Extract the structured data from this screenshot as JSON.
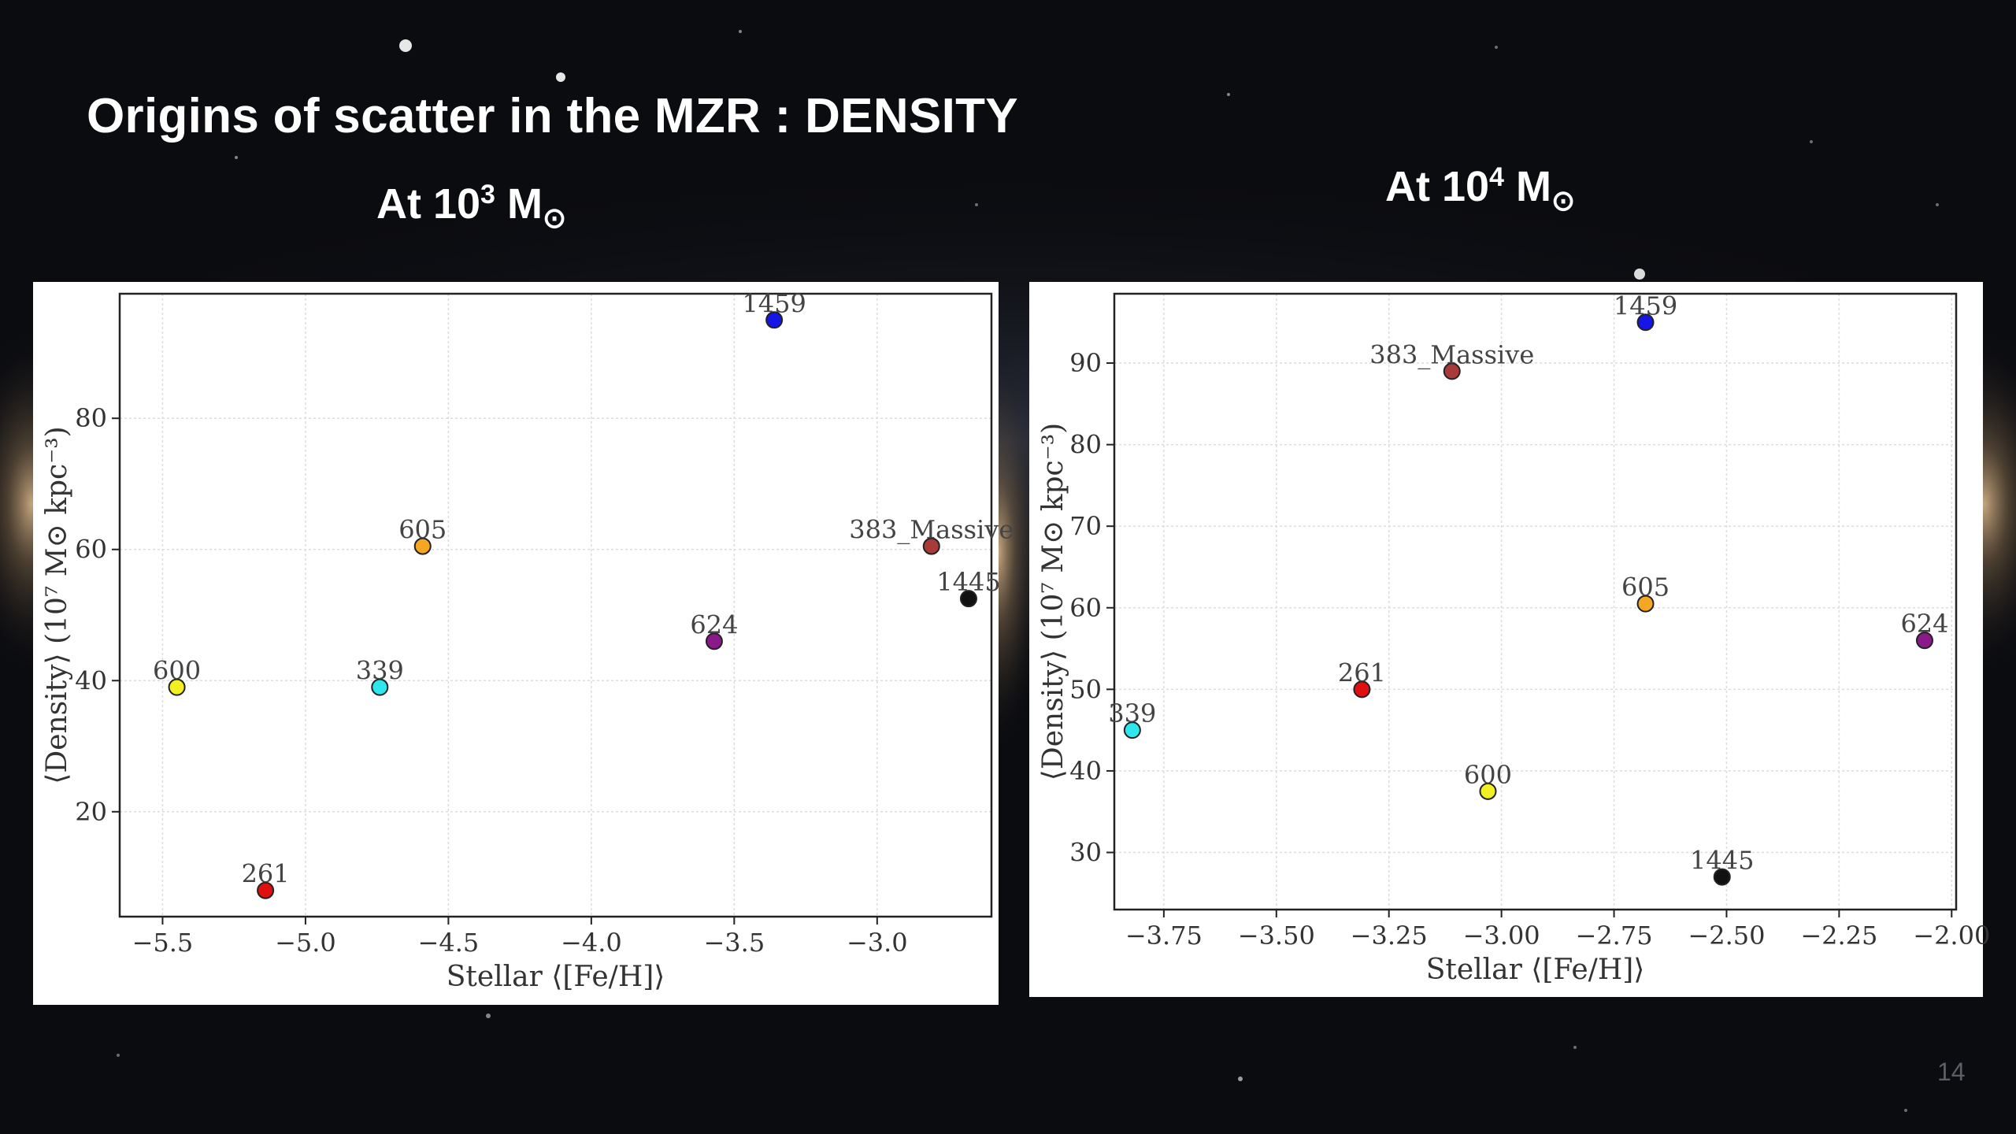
{
  "slide": {
    "title": "Origins of scatter in the MZR :  DENSITY",
    "page_number": "14"
  },
  "panels": [
    {
      "title_prefix": "At 10",
      "title_exp": "3",
      "title_unit": "M"
    },
    {
      "title_prefix": "At 10",
      "title_exp": "4",
      "title_unit": "M"
    }
  ],
  "chart_data": [
    {
      "type": "scatter",
      "xlabel": "Stellar ⟨[Fe/H]⟩",
      "ylabel": "⟨Density⟩ (10⁷ M⊙ kpc⁻³)",
      "xlim": [
        -5.65,
        -2.6
      ],
      "ylim": [
        4,
        99
      ],
      "xticks": [
        -5.5,
        -5.0,
        -4.5,
        -4.0,
        -3.5,
        -3.0
      ],
      "xtick_labels": [
        "−5.5",
        "−5.0",
        "−4.5",
        "−4.0",
        "−3.5",
        "−3.0"
      ],
      "yticks": [
        20,
        40,
        60,
        80
      ],
      "ytick_labels": [
        "20",
        "40",
        "60",
        "80"
      ],
      "grid": true,
      "points": [
        {
          "label": "1459",
          "x": -3.36,
          "y": 95,
          "color": "#1515e8"
        },
        {
          "label": "383_Massive",
          "x": -2.81,
          "y": 60.5,
          "color": "#a83a3a"
        },
        {
          "label": "605",
          "x": -4.59,
          "y": 60.5,
          "color": "#f5a623"
        },
        {
          "label": "1445",
          "x": -2.68,
          "y": 52.5,
          "color": "#111111"
        },
        {
          "label": "624",
          "x": -3.57,
          "y": 46,
          "color": "#8a1a8a"
        },
        {
          "label": "600",
          "x": -5.45,
          "y": 39,
          "color": "#f2ef22"
        },
        {
          "label": "339",
          "x": -4.74,
          "y": 39,
          "color": "#2ee6ec"
        },
        {
          "label": "261",
          "x": -5.14,
          "y": 8,
          "color": "#e01010"
        }
      ]
    },
    {
      "type": "scatter",
      "xlabel": "Stellar ⟨[Fe/H]⟩",
      "ylabel": "⟨Density⟩ (10⁷ M⊙ kpc⁻³)",
      "xlim": [
        -3.86,
        -1.99
      ],
      "ylim": [
        23,
        98.5
      ],
      "xticks": [
        -3.75,
        -3.5,
        -3.25,
        -3.0,
        -2.75,
        -2.5,
        -2.25,
        -2.0
      ],
      "xtick_labels": [
        "−3.75",
        "−3.50",
        "−3.25",
        "−3.00",
        "−2.75",
        "−2.50",
        "−2.25",
        "−2.00"
      ],
      "yticks": [
        30,
        40,
        50,
        60,
        70,
        80,
        90
      ],
      "ytick_labels": [
        "30",
        "40",
        "50",
        "60",
        "70",
        "80",
        "90"
      ],
      "grid": true,
      "points": [
        {
          "label": "1459",
          "x": -2.68,
          "y": 95,
          "color": "#1515e8"
        },
        {
          "label": "383_Massive",
          "x": -3.11,
          "y": 89,
          "color": "#a83a3a"
        },
        {
          "label": "605",
          "x": -2.68,
          "y": 60.5,
          "color": "#f5a623"
        },
        {
          "label": "624",
          "x": -2.06,
          "y": 56,
          "color": "#8a1a8a"
        },
        {
          "label": "261",
          "x": -3.31,
          "y": 50,
          "color": "#e01010"
        },
        {
          "label": "339",
          "x": -3.82,
          "y": 45,
          "color": "#2ee6ec"
        },
        {
          "label": "600",
          "x": -3.03,
          "y": 37.5,
          "color": "#f2ef22"
        },
        {
          "label": "1445",
          "x": -2.51,
          "y": 27,
          "color": "#111111"
        }
      ]
    }
  ]
}
